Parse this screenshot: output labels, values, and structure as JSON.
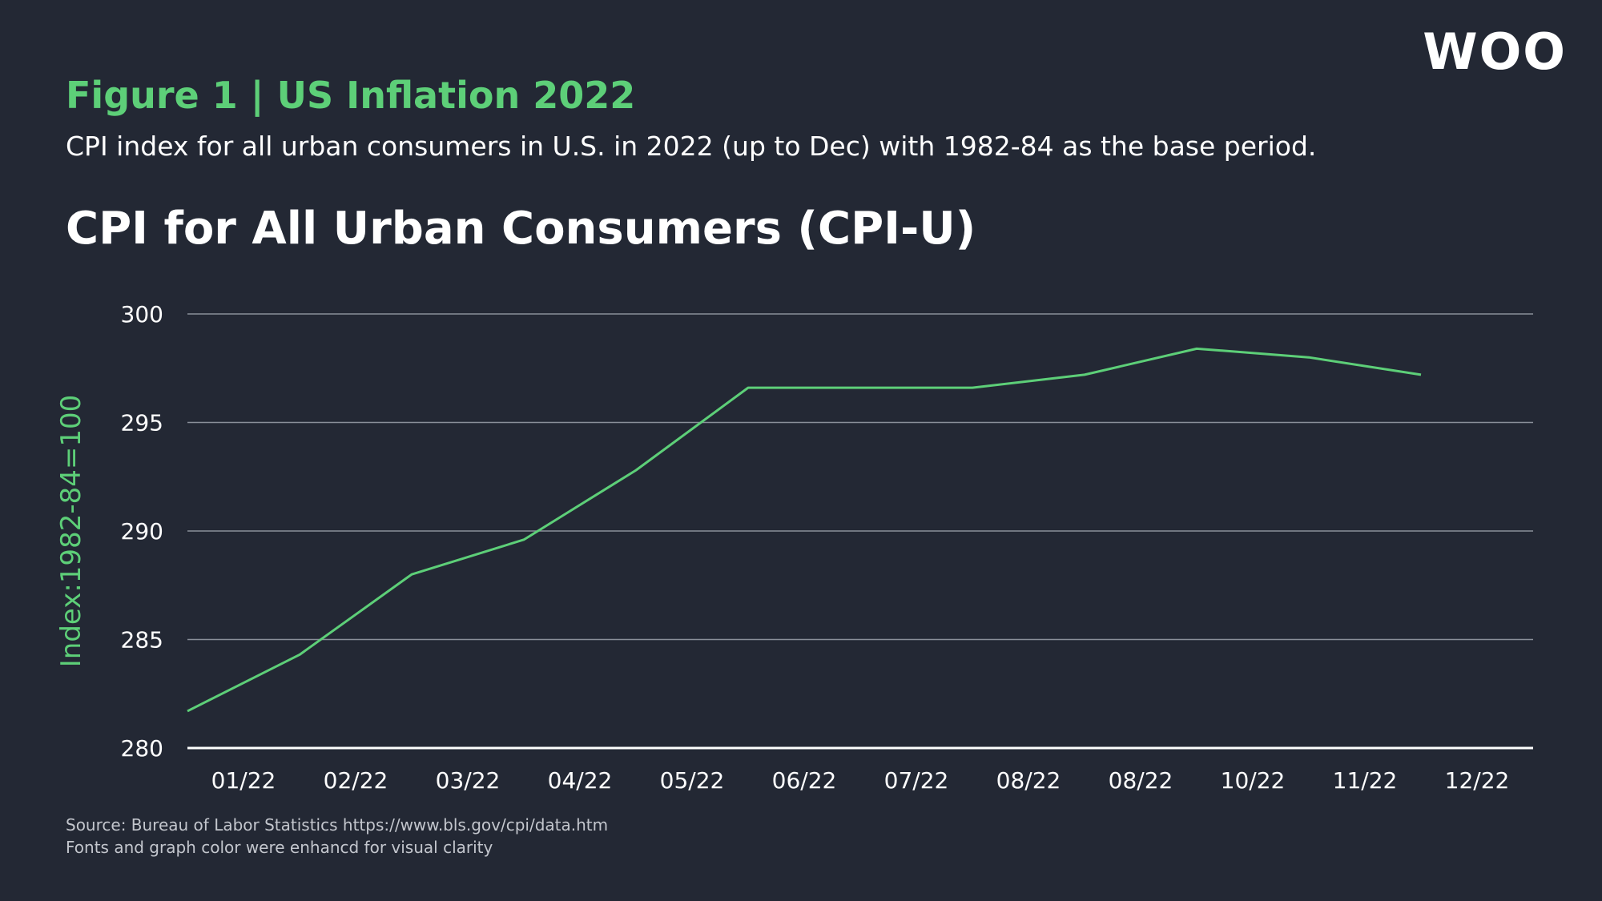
{
  "brand": {
    "logo_text": "WOO",
    "accent_color": "#5dcf78",
    "background_color": "#232834"
  },
  "figure": {
    "title": "Figure 1 | US Inflation 2022",
    "subtitle": "CPI index for all urban consumers in U.S. in 2022 (up to Dec) with 1982-84 as the base period."
  },
  "footer": {
    "source_line": "Source: Bureau of Labor Statistics https://www.bls.gov/cpi/data.htm",
    "note_line": "Fonts and graph color were enhancd for visual clarity"
  },
  "chart_data": {
    "type": "line",
    "title": "CPI for All Urban Consumers (CPI-U)",
    "xlabel": "",
    "ylabel": "Index:1982-84=100",
    "categories": [
      "01/22",
      "02/22",
      "03/22",
      "04/22",
      "05/22",
      "06/22",
      "07/22",
      "08/22",
      "08/22",
      "10/22",
      "11/22",
      "12/22"
    ],
    "series": [
      {
        "name": "CPI-U",
        "color": "#5dcf78",
        "values": [
          281.7,
          284.3,
          288.0,
          289.6,
          292.8,
          296.6,
          296.6,
          296.6,
          297.2,
          298.4,
          298.0,
          297.2
        ]
      }
    ],
    "yticks": [
      280,
      285,
      290,
      295,
      300
    ],
    "ylim": [
      280,
      300
    ],
    "grid": true,
    "legend": "none"
  }
}
